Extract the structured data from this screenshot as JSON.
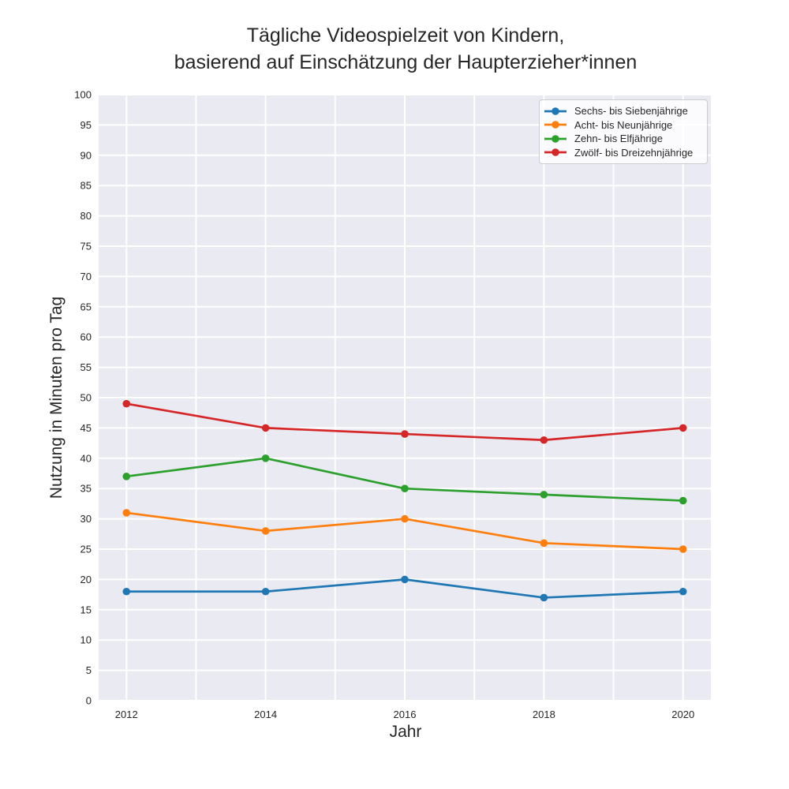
{
  "title_lines": [
    "Tägliche Videospielzeit von Kindern,",
    "basierend auf Einschätzung der Haupterzieher*innen"
  ],
  "chart_data": {
    "type": "line",
    "title": "Tägliche Videospielzeit von Kindern,\nbasierend auf Einschätzung der Haupterzieher*innen",
    "xlabel": "Jahr",
    "ylabel": "Nutzung in Minuten pro Tag",
    "x": [
      2012,
      2014,
      2016,
      2018,
      2020
    ],
    "series": [
      {
        "name": "Sechs- bis Siebenjährige",
        "color": "#1f77b4",
        "values": [
          18,
          18,
          20,
          17,
          18
        ]
      },
      {
        "name": "Acht- bis Neunjährige",
        "color": "#ff7f0e",
        "values": [
          31,
          28,
          30,
          26,
          25
        ]
      },
      {
        "name": "Zehn- bis Elfjährige",
        "color": "#2ca02c",
        "values": [
          37,
          40,
          35,
          34,
          33
        ]
      },
      {
        "name": "Zwölf- bis Dreizehnjährige",
        "color": "#d62728",
        "values": [
          49,
          45,
          44,
          43,
          45
        ]
      }
    ],
    "xlim": [
      2011.6,
      2020.4
    ],
    "ylim": [
      0,
      100
    ],
    "xticks": [
      2012,
      2014,
      2016,
      2018,
      2020
    ],
    "ytick_min": 0,
    "ytick_max": 100,
    "ytick_step": 5,
    "x_gridline_step": 1,
    "grid": true,
    "legend_position": "top-right",
    "colors": {
      "plot_background": "#eaeaf2",
      "gridline": "#ffffff",
      "text": "#262626",
      "legend_background": "rgba(255,255,255,0.8)",
      "legend_border": "#cccccc"
    }
  }
}
